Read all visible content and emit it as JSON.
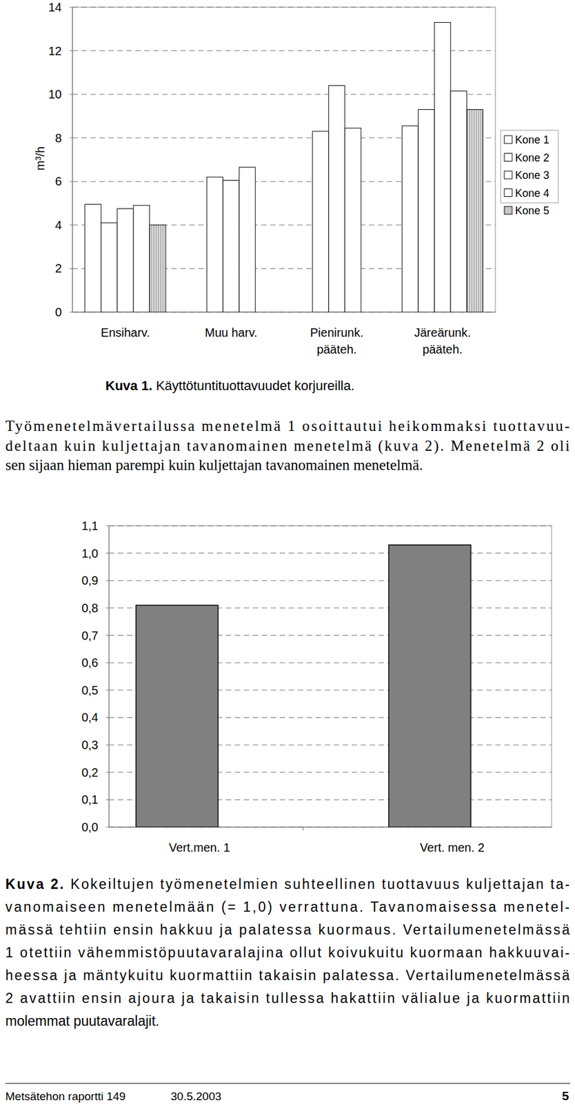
{
  "chart_data": [
    {
      "type": "bar",
      "y_label": "m³/h",
      "categories": [
        "Ensiharv.",
        "Muu harv.",
        "Pienirunk.\npääteh.",
        "Järeärunk.\npääteh."
      ],
      "series": [
        {
          "name": "Kone 1",
          "color": "#ffffff",
          "values": [
            4.95,
            6.2,
            8.3,
            8.55
          ]
        },
        {
          "name": "Kone 2",
          "color": "#ffffff",
          "values": [
            4.1,
            6.05,
            10.4,
            9.3
          ]
        },
        {
          "name": "Kone 3",
          "color": "#ffffff",
          "values": [
            4.75,
            6.65,
            8.45,
            13.3
          ]
        },
        {
          "name": "Kone 4",
          "color": "#ffffff",
          "values": [
            4.9,
            null,
            null,
            10.15
          ]
        },
        {
          "name": "Kone 5",
          "color": "#909090",
          "values": [
            4.0,
            null,
            null,
            9.3
          ]
        }
      ],
      "ylim": [
        0,
        14
      ],
      "yticks": [
        0,
        2,
        4,
        6,
        8,
        10,
        12,
        14
      ],
      "grid": true,
      "legend": "right"
    },
    {
      "type": "bar",
      "categories": [
        "Vert.men. 1",
        "Vert. men. 2"
      ],
      "values": [
        0.81,
        1.03
      ],
      "color": "#808080",
      "ylim": [
        0,
        1.1
      ],
      "yticks": [
        {
          "value": 0,
          "label": "0,0"
        },
        {
          "value": 0.1,
          "label": "0,1"
        },
        {
          "value": 0.2,
          "label": "0,2"
        },
        {
          "value": 0.3,
          "label": "0,3"
        },
        {
          "value": 0.4,
          "label": "0,4"
        },
        {
          "value": 0.5,
          "label": "0,5"
        },
        {
          "value": 0.6,
          "label": "0,6"
        },
        {
          "value": 0.7,
          "label": "0,7"
        },
        {
          "value": 0.8,
          "label": "0,8"
        },
        {
          "value": 0.9,
          "label": "0,9"
        },
        {
          "value": 1.0,
          "label": "1,0"
        },
        {
          "value": 1.1,
          "label": "1,1"
        }
      ],
      "grid": true
    }
  ],
  "captions": [
    {
      "label": "Kuva 1.",
      "lines": [
        "Käyttötuntituottavuudet korjureilla."
      ]
    },
    {
      "label": "Kuva 2.",
      "lines": [
        "Kokeiltujen työmenetelmien suhteellinen tuottavuus kuljettajan ta-",
        "vanomaiseen menetelmään (= 1,0) verrattuna. Tavanomaisessa menetel-",
        "mässä tehtiin ensin hakkuu ja palatessa kuormaus. Vertailumenetelmässä",
        "1 otettiin vähemmistöpuutavaralajina ollut koivukuitu kuormaan hakkuuvai-",
        "heessa ja mäntykuitu kuormattiin takaisin palatessa. Vertailumenetelmässä",
        "2 avattiin ensin ajoura ja takaisin tullessa hakattiin välialue ja kuormattiin",
        "molemmat puutavaralajit."
      ]
    }
  ],
  "paragraph": {
    "lines": [
      "Työmenetelmävertailussa menetelmä 1 osoittautui heikommaksi tuottavuu-",
      "deltaan kuin kuljettajan tavanomainen menetelmä (kuva 2). Menetelmä 2 oli",
      "sen sijaan hieman parempi kuin kuljettajan tavanomainen menetelmä."
    ]
  },
  "footer": {
    "publication": "Metsätehon raportti 149",
    "date": "30.5.2003",
    "page": "5"
  }
}
